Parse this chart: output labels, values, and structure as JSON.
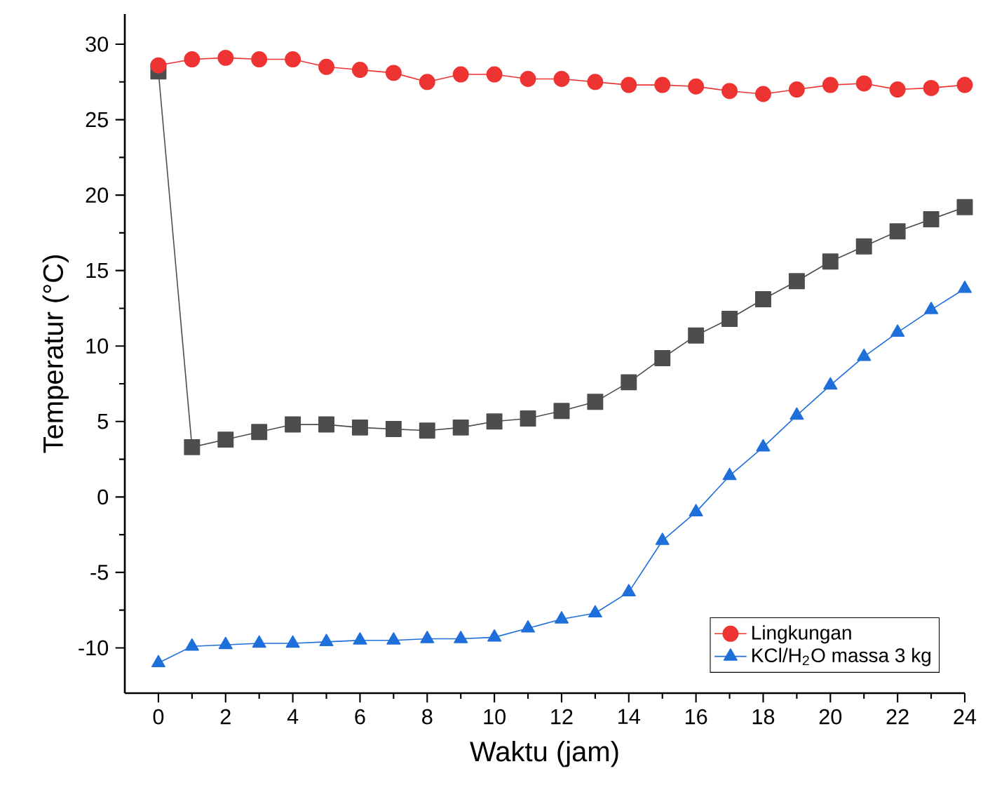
{
  "chart_data": {
    "type": "line",
    "xlabel": "Waktu (jam)",
    "ylabel": "Temperatur (°C)",
    "x": [
      0,
      1,
      2,
      3,
      4,
      5,
      6,
      7,
      8,
      9,
      10,
      11,
      12,
      13,
      14,
      15,
      16,
      17,
      18,
      19,
      20,
      21,
      22,
      23,
      24
    ],
    "series": [
      {
        "color": "#4d4d4d",
        "marker": "square",
        "values": [
          28.2,
          3.3,
          3.8,
          4.3,
          4.8,
          4.8,
          4.6,
          4.5,
          4.4,
          4.6,
          5.0,
          5.2,
          5.7,
          6.3,
          7.6,
          9.2,
          10.7,
          11.8,
          13.1,
          14.3,
          15.6,
          16.6,
          17.6,
          18.4,
          19.2
        ]
      },
      {
        "name": "Lingkungan",
        "color": "#ee3333",
        "marker": "circle",
        "values": [
          28.6,
          29.0,
          29.1,
          29.0,
          29.0,
          28.5,
          28.3,
          28.1,
          27.5,
          28.0,
          28.0,
          27.7,
          27.7,
          27.5,
          27.3,
          27.3,
          27.2,
          26.9,
          26.7,
          27.0,
          27.3,
          27.4,
          27.0,
          27.1,
          27.3
        ]
      },
      {
        "name": "KCl/H$_{2}$O massa 3 kg",
        "color": "#1f6fdb",
        "marker": "triangle",
        "values": [
          -11.0,
          -9.9,
          -9.8,
          -9.7,
          -9.7,
          -9.6,
          -9.5,
          -9.5,
          -9.4,
          -9.4,
          -9.3,
          -8.7,
          -8.1,
          -7.7,
          -6.3,
          -2.9,
          -1.0,
          1.4,
          3.3,
          5.4,
          7.4,
          9.3,
          10.9,
          12.4,
          13.8
        ]
      }
    ],
    "xlim": [
      -1,
      24
    ],
    "ylim": [
      -13,
      32
    ],
    "xticks": [
      0,
      2,
      4,
      6,
      8,
      10,
      12,
      14,
      16,
      18,
      20,
      22,
      24
    ],
    "yticks": [
      -10,
      -5,
      0,
      5,
      10,
      15,
      20,
      25,
      30
    ],
    "legend": "bottom right",
    "grid": false,
    "line_style": "solid"
  }
}
